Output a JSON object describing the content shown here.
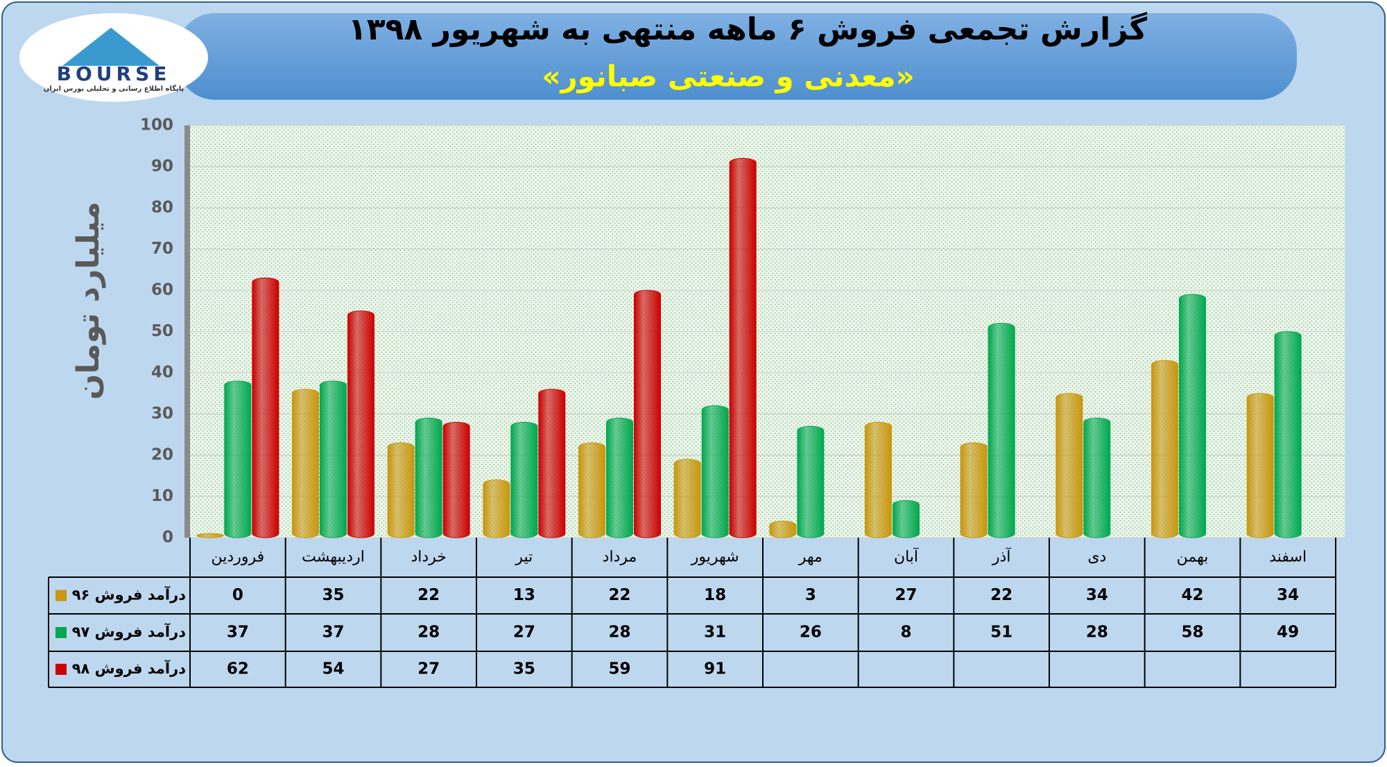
{
  "logo": {
    "text": "BOURSE",
    "subtitle": "پایگاه اطلاع رسانی و تحلیلی بورس ایران"
  },
  "chart_data": {
    "type": "bar",
    "title": "گزارش تجمعی فروش ۶ ماهه منتهی به شهریور ۱۳۹۸",
    "subtitle": "«معدنی و صنعتی صبانور»",
    "y_label": "میلیارد تومان",
    "categories": [
      "فروردین",
      "اردیبهشت",
      "خرداد",
      "تیر",
      "مرداد",
      "شهریور",
      "مهر",
      "آبان",
      "آذر",
      "دی",
      "بهمن",
      "اسفند"
    ],
    "series": [
      {
        "name": "درآمد فروش ۹۶",
        "color": "#c9960c",
        "values": [
          0,
          35,
          22,
          13,
          22,
          18,
          3,
          27,
          22,
          34,
          42,
          34
        ]
      },
      {
        "name": "درآمد فروش ۹۷",
        "color": "#00a84f",
        "values": [
          37,
          37,
          28,
          27,
          28,
          31,
          26,
          8,
          51,
          28,
          58,
          49
        ]
      },
      {
        "name": "درآمد فروش ۹۸",
        "color": "#cc0000",
        "values": [
          62,
          54,
          27,
          35,
          59,
          91,
          null,
          null,
          null,
          null,
          null,
          null
        ]
      }
    ],
    "ylim": [
      0,
      100
    ],
    "yticks": [
      0,
      10,
      20,
      30,
      40,
      50,
      60,
      70,
      80,
      90,
      100
    ],
    "grid": true
  }
}
